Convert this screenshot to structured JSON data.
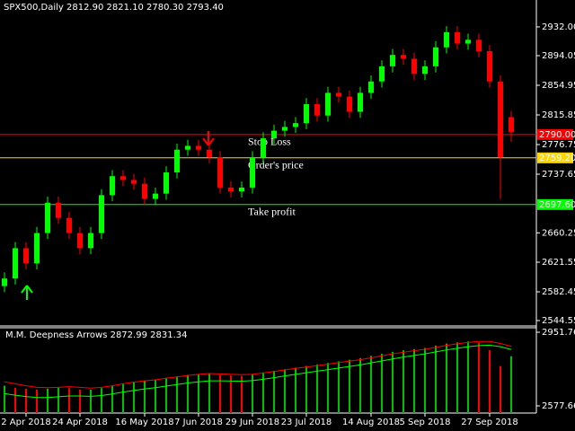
{
  "chart_data": [
    {
      "type": "candlestick",
      "title": "SPX500,Daily  2812.90 2821.10 2780.30 2793.40",
      "categories": [
        null,
        null,
        "2 Apr 2018",
        null,
        null,
        null,
        null,
        "24 Apr 2018",
        null,
        null,
        null,
        null,
        null,
        "16 May 2018",
        null,
        null,
        null,
        null,
        "7 Jun 2018",
        null,
        null,
        null,
        null,
        "29 Jun 2018",
        null,
        null,
        null,
        null,
        "23 Jul 2018",
        null,
        null,
        null,
        null,
        null,
        "14 Aug 2018",
        null,
        null,
        null,
        null,
        "5 Sep 2018",
        null,
        null,
        null,
        null,
        null,
        "27 Sep 2018",
        null,
        null
      ],
      "open": [
        2590,
        2600,
        2640,
        2620,
        2660,
        2700,
        2680,
        2660,
        2640,
        2660,
        2710,
        2735,
        2730,
        2725,
        2705,
        2712,
        2740,
        2770,
        2775,
        2770,
        2760,
        2720,
        2715,
        2720,
        2760,
        2785,
        2795,
        2800,
        2805,
        2830,
        2815,
        2845,
        2840,
        2820,
        2845,
        2860,
        2880,
        2895,
        2890,
        2870,
        2880,
        2905,
        2925,
        2910,
        2915,
        2900,
        2860,
        2812.9
      ],
      "high": [
        2608,
        2648,
        2648,
        2668,
        2708,
        2708,
        2688,
        2668,
        2668,
        2718,
        2743,
        2743,
        2738,
        2733,
        2720,
        2748,
        2778,
        2783,
        2783,
        2778,
        2768,
        2728,
        2728,
        2768,
        2793,
        2803,
        2808,
        2813,
        2838,
        2838,
        2853,
        2853,
        2848,
        2853,
        2868,
        2888,
        2903,
        2903,
        2898,
        2888,
        2913,
        2933,
        2933,
        2923,
        2923,
        2908,
        2868,
        2821.1
      ],
      "low": [
        2582,
        2592,
        2612,
        2612,
        2652,
        2672,
        2652,
        2632,
        2632,
        2652,
        2702,
        2722,
        2717,
        2697,
        2697,
        2704,
        2732,
        2762,
        2762,
        2752,
        2712,
        2707,
        2707,
        2712,
        2752,
        2777,
        2787,
        2792,
        2797,
        2807,
        2807,
        2832,
        2812,
        2812,
        2837,
        2852,
        2872,
        2882,
        2862,
        2862,
        2872,
        2897,
        2902,
        2902,
        2892,
        2852,
        2705,
        2780.3
      ],
      "close": [
        2600,
        2640,
        2620,
        2660,
        2700,
        2680,
        2660,
        2640,
        2660,
        2710,
        2735,
        2730,
        2725,
        2705,
        2712,
        2740,
        2770,
        2775,
        2770,
        2760,
        2720,
        2715,
        2720,
        2760,
        2785,
        2795,
        2800,
        2805,
        2830,
        2815,
        2845,
        2840,
        2820,
        2845,
        2860,
        2880,
        2895,
        2890,
        2870,
        2880,
        2905,
        2925,
        2910,
        2915,
        2900,
        2860,
        2760,
        2793.4
      ],
      "up_color": "#00ff00",
      "down_color": "#ff0000",
      "ylim": [
        2538.6,
        2967.5
      ],
      "yticks": [
        {
          "value": 2932.0,
          "label": "2932.00"
        },
        2894.05,
        2854.95,
        2815.85,
        2776.75,
        2737.65,
        2660.25,
        2621.55,
        2582.45,
        2544.55
      ],
      "levels": [
        {
          "name": "Stop Loss",
          "value": 2790.0,
          "label": "2790.00",
          "color": "#ff0000"
        },
        {
          "name": "Order's price",
          "value": 2759.2,
          "label": "2759.20",
          "color": "#ffd700"
        },
        {
          "name": "Take profit",
          "value": 2697.6,
          "label": "2697.60",
          "color": "#00ff00"
        }
      ]
    },
    {
      "type": "bar",
      "title": "M.M. Deepness Arrows 2872.99 2831.34",
      "values": [
        2680,
        2670,
        2665,
        2660,
        2665,
        2670,
        2668,
        2660,
        2660,
        2668,
        2680,
        2692,
        2700,
        2705,
        2712,
        2720,
        2728,
        2735,
        2740,
        2740,
        2735,
        2732,
        2730,
        2738,
        2748,
        2756,
        2764,
        2772,
        2780,
        2788,
        2796,
        2804,
        2812,
        2820,
        2832,
        2842,
        2852,
        2860,
        2866,
        2872,
        2884,
        2894,
        2900,
        2905,
        2900,
        2860,
        2780,
        2830
      ],
      "up_color": "#00c000",
      "down_color": "#ff0000",
      "series": [
        {
          "color": "#ff0000",
          "values": [
            2700,
            2690,
            2680,
            2672,
            2670,
            2672,
            2675,
            2672,
            2668,
            2672,
            2680,
            2690,
            2698,
            2705,
            2710,
            2718,
            2725,
            2732,
            2738,
            2742,
            2740,
            2738,
            2736,
            2738,
            2745,
            2752,
            2760,
            2768,
            2775,
            2782,
            2790,
            2798,
            2805,
            2812,
            2822,
            2832,
            2842,
            2850,
            2858,
            2865,
            2875,
            2885,
            2893,
            2900,
            2905,
            2905,
            2895,
            2880
          ]
        },
        {
          "color": "#00ff00",
          "values": [
            2640,
            2632,
            2625,
            2620,
            2620,
            2624,
            2628,
            2628,
            2626,
            2630,
            2638,
            2648,
            2656,
            2664,
            2670,
            2678,
            2686,
            2694,
            2700,
            2705,
            2705,
            2704,
            2703,
            2706,
            2713,
            2721,
            2730,
            2738,
            2746,
            2754,
            2762,
            2770,
            2778,
            2786,
            2796,
            2806,
            2816,
            2826,
            2834,
            2842,
            2852,
            2862,
            2870,
            2878,
            2884,
            2886,
            2878,
            2864
          ]
        }
      ],
      "ylim": [
        2541.2,
        2974.6
      ],
      "yticks": [
        2951.76,
        2577.66
      ]
    }
  ]
}
